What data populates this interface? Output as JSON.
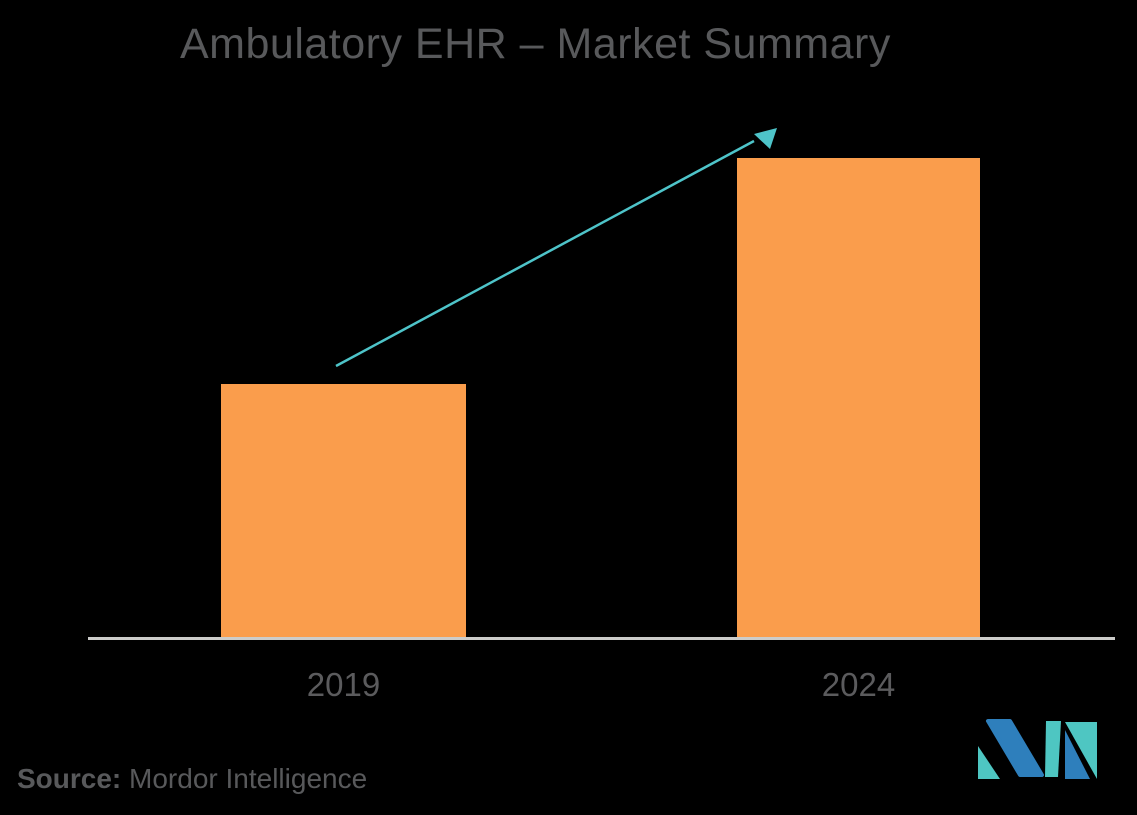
{
  "page": {
    "background": "#000000"
  },
  "title": {
    "text": "Ambulatory EHR – Market Summary",
    "color": "#58595B"
  },
  "chart_data": {
    "type": "bar",
    "title": "Ambulatory EHR – Market Summary",
    "categories": [
      "2019",
      "2024"
    ],
    "values": [
      53,
      100
    ],
    "values_note": "no numeric axis shown; values are relative bar heights as % of the 2024 bar",
    "xlabel": "",
    "ylabel": "",
    "grid": false,
    "legend": false,
    "bar_color": "#FA9D4C",
    "axis_line_color": "#CCCCCA",
    "tick_label_color": "#5B5B5D",
    "trend_arrow": {
      "direction": "up",
      "from_category": "2019",
      "to_category": "2024",
      "color": "#4EC4C9"
    }
  },
  "source": {
    "label": "Source:",
    "text": "Mordor Intelligence",
    "color": "#58595B"
  },
  "logo": {
    "name": "Mordor Intelligence logo",
    "teal": "#4EC6C2",
    "blue": "#2E7FBC"
  }
}
